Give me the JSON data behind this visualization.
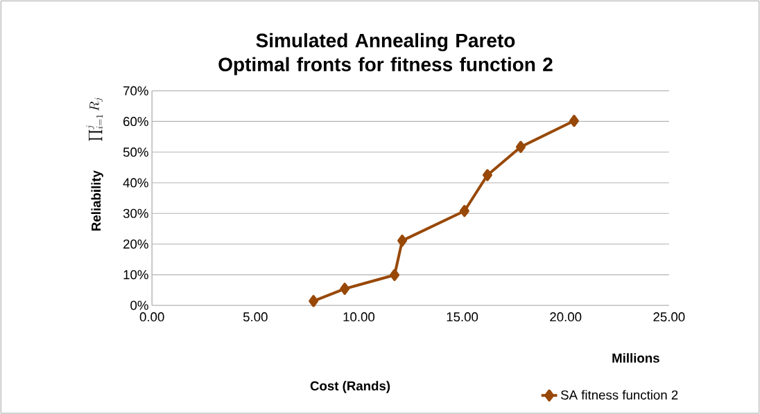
{
  "chart_data": {
    "type": "line",
    "title": "Simulated Annealing Pareto Optimal fronts for fitness function 2",
    "xlabel": "Cost (Rands)",
    "ylabel": "Reliability",
    "annotations": [
      "Millions",
      "\\prod_{i=1}^{j} R_j"
    ],
    "x": [
      7.81,
      9.32,
      11.73,
      12.1,
      15.11,
      16.22,
      17.83,
      20.41
    ],
    "series": [
      {
        "name": "SA fitness function 2",
        "color": "#984807",
        "values": [
          0.014,
          0.054,
          0.099,
          0.211,
          0.308,
          0.425,
          0.517,
          0.602
        ]
      }
    ],
    "xlim": [
      0,
      25
    ],
    "xticks": [
      {
        "value": 0,
        "label": "0.00"
      },
      {
        "value": 5,
        "label": "5.00"
      },
      {
        "value": 10,
        "label": "10.00"
      },
      {
        "value": 15,
        "label": "15.00"
      },
      {
        "value": 20,
        "label": "20.00"
      },
      {
        "value": 25,
        "label": "25.00"
      }
    ],
    "ylim": [
      0,
      0.7
    ],
    "yticks": [
      {
        "value": 0,
        "label": "0%"
      },
      {
        "value": 0.1,
        "label": "10%"
      },
      {
        "value": 0.2,
        "label": "20%"
      },
      {
        "value": 0.3,
        "label": "30%"
      },
      {
        "value": 0.4,
        "label": "40%"
      },
      {
        "value": 0.5,
        "label": "50%"
      },
      {
        "value": 0.6,
        "label": "60%"
      },
      {
        "value": 0.7,
        "label": "70%"
      }
    ],
    "grid": "y",
    "legend": "bottom right",
    "marker": "diamond",
    "line_style": "solid"
  }
}
